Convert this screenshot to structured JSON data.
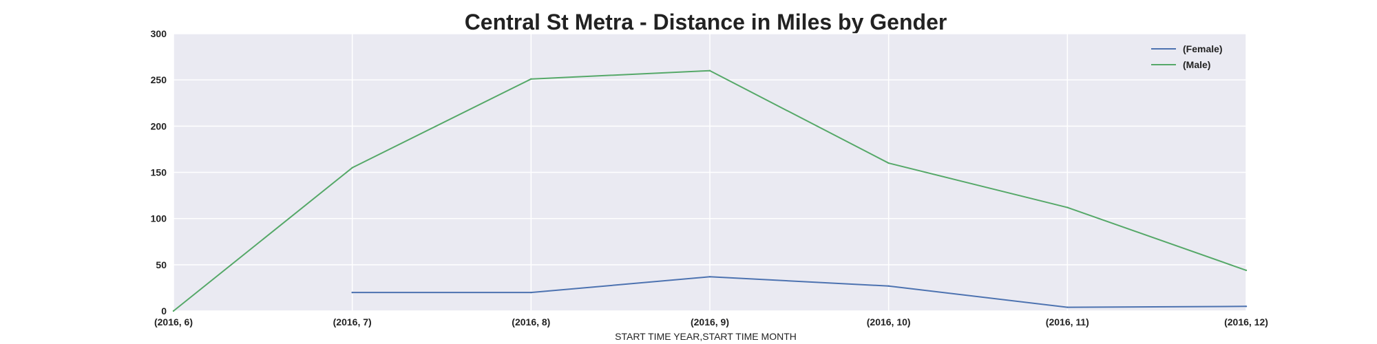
{
  "chart_data": {
    "type": "line",
    "title": "Central St Metra - Distance in Miles by Gender",
    "xlabel": "START TIME YEAR,START TIME MONTH",
    "ylabel": "",
    "categories": [
      "(2016, 6)",
      "(2016, 7)",
      "(2016, 8)",
      "(2016, 9)",
      "(2016, 10)",
      "(2016, 11)",
      "(2016, 12)"
    ],
    "ylim": [
      0,
      300
    ],
    "yticks": [
      0,
      50,
      100,
      150,
      200,
      250,
      300
    ],
    "grid": true,
    "legend_position": "top-right",
    "series": [
      {
        "name": "(Female)",
        "color": "#4c72b0",
        "values": [
          null,
          20,
          20,
          37,
          27,
          4,
          5
        ]
      },
      {
        "name": "(Male)",
        "color": "#55a868",
        "values": [
          0,
          155,
          251,
          260,
          160,
          112,
          44
        ]
      }
    ]
  },
  "colors": {
    "plot_background": "#eaeaf2",
    "grid": "#ffffff"
  }
}
